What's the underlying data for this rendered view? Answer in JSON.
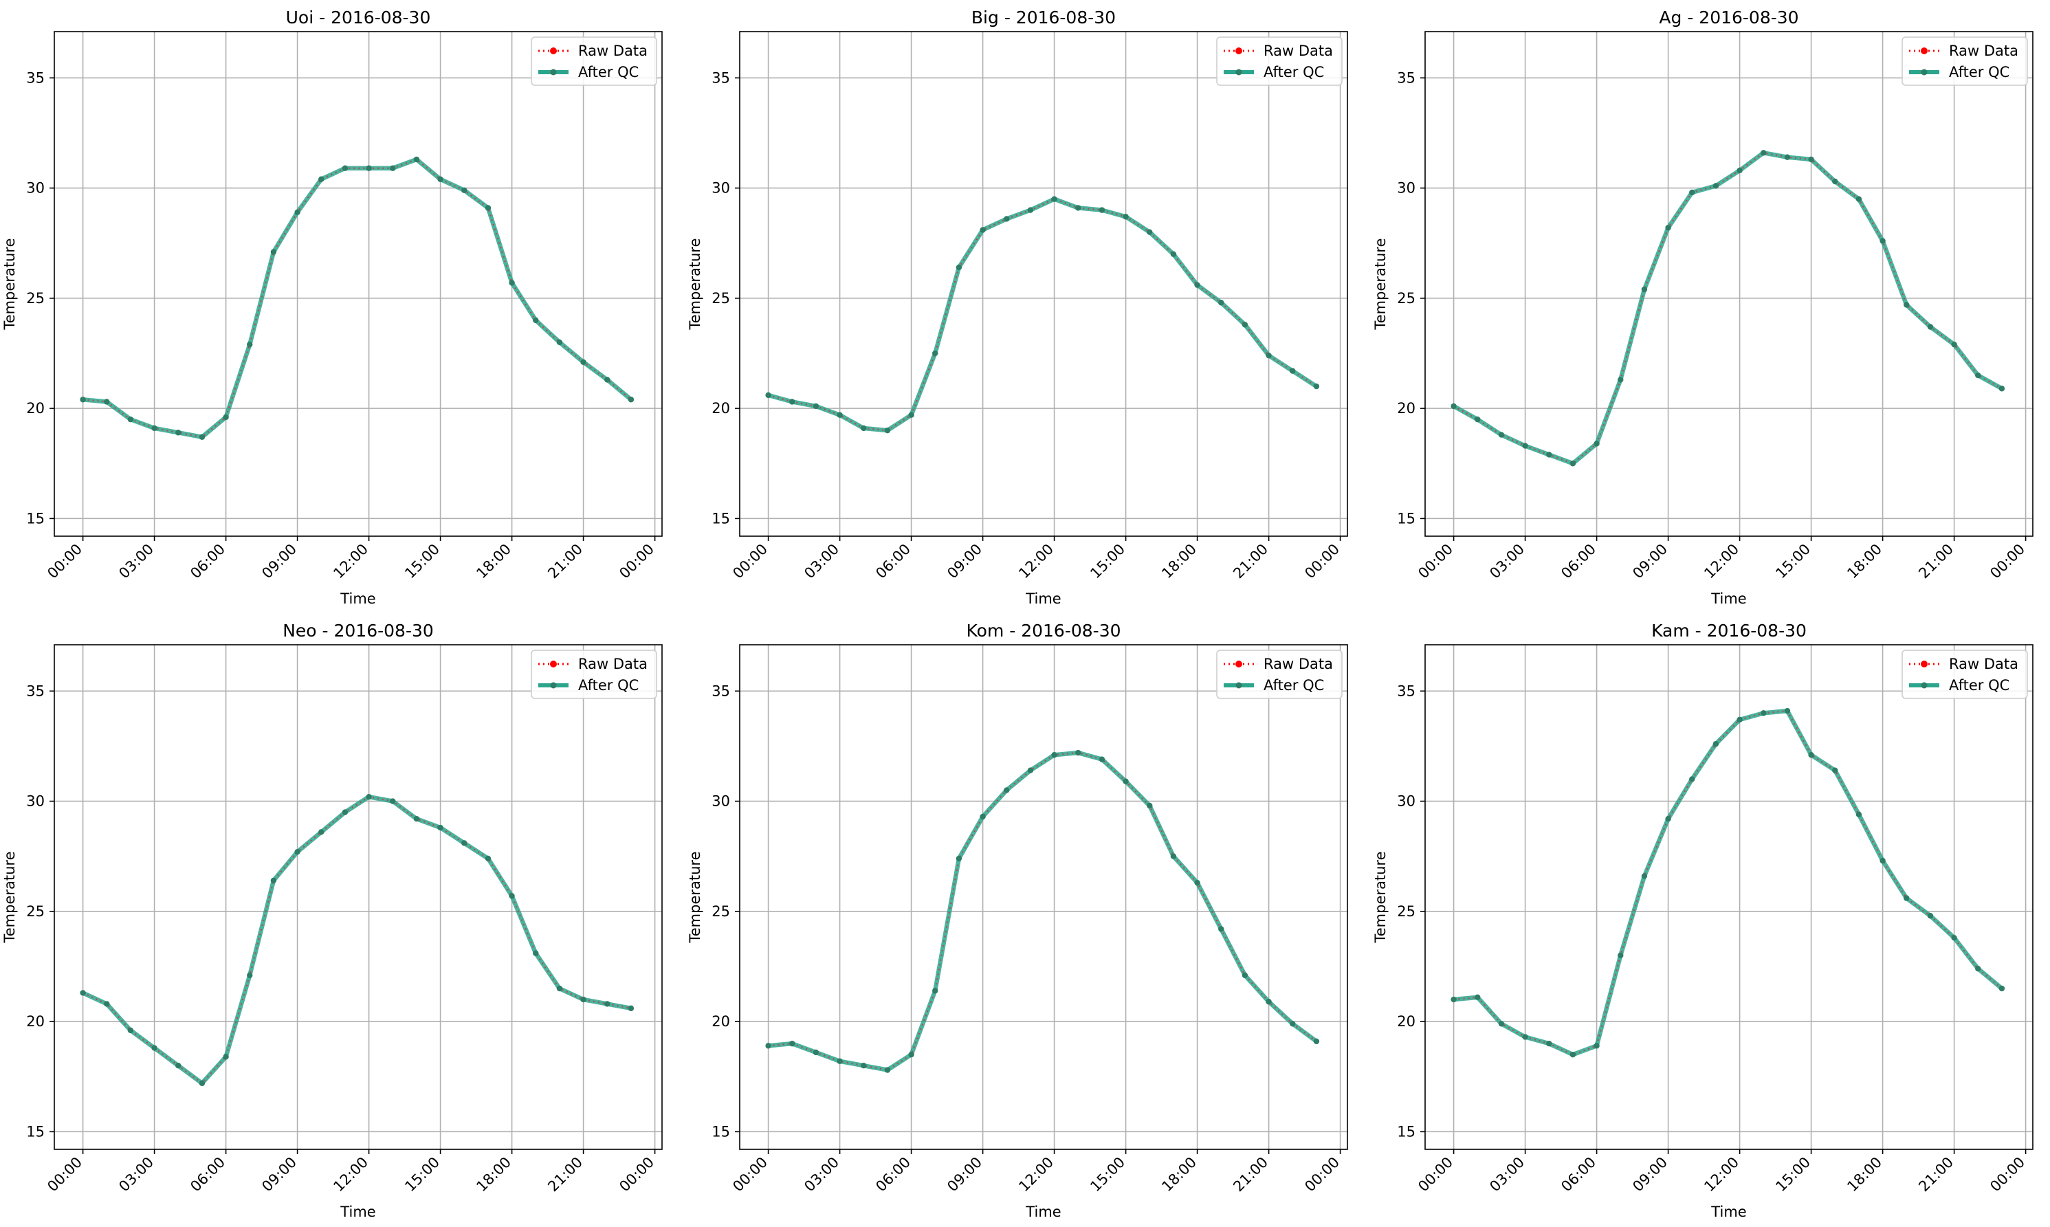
{
  "legend": {
    "raw_label": "Raw Data",
    "qc_label": "After QC"
  },
  "colors": {
    "raw": "#ff0000",
    "qc": "#2ca58d",
    "qc_marker": "#2e7d66",
    "grid": "#b0b0b0",
    "axis": "#000000"
  },
  "axes_common": {
    "xlabel": "Time",
    "ylabel": "Temperature",
    "x_tick_labels": [
      "00:00",
      "03:00",
      "06:00",
      "09:00",
      "12:00",
      "15:00",
      "18:00",
      "21:00",
      "00:00"
    ],
    "y_ticks": [
      15,
      20,
      25,
      30,
      35
    ],
    "ylim": [
      14.2,
      37.1
    ],
    "xlim_hours": [
      -1.2,
      24.3
    ],
    "grid": true,
    "legend_position": "top-right"
  },
  "chart_data": [
    {
      "type": "line",
      "title": "Uoi - 2016-08-30",
      "x": [
        0,
        1,
        2,
        3,
        4,
        5,
        6,
        7,
        8,
        9,
        10,
        11,
        12,
        13,
        14,
        15,
        16,
        17,
        18,
        19,
        20,
        21,
        22,
        23
      ],
      "series": [
        {
          "name": "Raw Data",
          "values": [
            20.4,
            20.3,
            19.5,
            19.1,
            18.9,
            18.7,
            19.6,
            22.9,
            27.1,
            28.9,
            30.4,
            30.9,
            30.9,
            30.9,
            31.3,
            30.4,
            29.9,
            29.1,
            25.7,
            24.0,
            23.0,
            22.1,
            21.3,
            20.4
          ]
        },
        {
          "name": "After QC",
          "values": [
            20.4,
            20.3,
            19.5,
            19.1,
            18.9,
            18.7,
            19.6,
            22.9,
            27.1,
            28.9,
            30.4,
            30.9,
            30.9,
            30.9,
            31.3,
            30.4,
            29.9,
            29.1,
            25.7,
            24.0,
            23.0,
            22.1,
            21.3,
            20.4
          ]
        }
      ]
    },
    {
      "type": "line",
      "title": "Big - 2016-08-30",
      "x": [
        0,
        1,
        2,
        3,
        4,
        5,
        6,
        7,
        8,
        9,
        10,
        11,
        12,
        13,
        14,
        15,
        16,
        17,
        18,
        19,
        20,
        21,
        22,
        23
      ],
      "series": [
        {
          "name": "Raw Data",
          "values": [
            20.6,
            20.3,
            20.1,
            19.7,
            19.1,
            19.0,
            19.7,
            22.5,
            26.4,
            28.1,
            28.6,
            29.0,
            29.5,
            29.1,
            29.0,
            28.7,
            28.0,
            27.0,
            25.6,
            24.8,
            23.8,
            22.4,
            21.7,
            21.0
          ]
        },
        {
          "name": "After QC",
          "values": [
            20.6,
            20.3,
            20.1,
            19.7,
            19.1,
            19.0,
            19.7,
            22.5,
            26.4,
            28.1,
            28.6,
            29.0,
            29.5,
            29.1,
            29.0,
            28.7,
            28.0,
            27.0,
            25.6,
            24.8,
            23.8,
            22.4,
            21.7,
            21.0
          ]
        }
      ]
    },
    {
      "type": "line",
      "title": "Ag - 2016-08-30",
      "x": [
        0,
        1,
        2,
        3,
        4,
        5,
        6,
        7,
        8,
        9,
        10,
        11,
        12,
        13,
        14,
        15,
        16,
        17,
        18,
        19,
        20,
        21,
        22,
        23
      ],
      "series": [
        {
          "name": "Raw Data",
          "values": [
            20.1,
            19.5,
            18.8,
            18.3,
            17.9,
            17.5,
            18.4,
            21.3,
            25.4,
            28.2,
            29.8,
            30.1,
            30.8,
            31.6,
            31.4,
            31.3,
            30.3,
            29.5,
            27.6,
            24.7,
            23.7,
            22.9,
            21.5,
            20.9
          ]
        },
        {
          "name": "After QC",
          "values": [
            20.1,
            19.5,
            18.8,
            18.3,
            17.9,
            17.5,
            18.4,
            21.3,
            25.4,
            28.2,
            29.8,
            30.1,
            30.8,
            31.6,
            31.4,
            31.3,
            30.3,
            29.5,
            27.6,
            24.7,
            23.7,
            22.9,
            21.5,
            20.9
          ]
        }
      ]
    },
    {
      "type": "line",
      "title": "Neo - 2016-08-30",
      "x": [
        0,
        1,
        2,
        3,
        4,
        5,
        6,
        7,
        8,
        9,
        10,
        11,
        12,
        13,
        14,
        15,
        16,
        17,
        18,
        19,
        20,
        21,
        22,
        23
      ],
      "series": [
        {
          "name": "Raw Data",
          "values": [
            21.3,
            20.8,
            19.6,
            18.8,
            18.0,
            17.2,
            18.4,
            22.1,
            26.4,
            27.7,
            28.6,
            29.5,
            30.2,
            30.0,
            29.2,
            28.8,
            28.1,
            27.4,
            25.7,
            23.1,
            21.5,
            21.0,
            20.8,
            20.6
          ]
        },
        {
          "name": "After QC",
          "values": [
            21.3,
            20.8,
            19.6,
            18.8,
            18.0,
            17.2,
            18.4,
            22.1,
            26.4,
            27.7,
            28.6,
            29.5,
            30.2,
            30.0,
            29.2,
            28.8,
            28.1,
            27.4,
            25.7,
            23.1,
            21.5,
            21.0,
            20.8,
            20.6
          ]
        }
      ]
    },
    {
      "type": "line",
      "title": "Kom - 2016-08-30",
      "x": [
        0,
        1,
        2,
        3,
        4,
        5,
        6,
        7,
        8,
        9,
        10,
        11,
        12,
        13,
        14,
        15,
        16,
        17,
        18,
        19,
        20,
        21,
        22,
        23
      ],
      "series": [
        {
          "name": "Raw Data",
          "values": [
            18.9,
            19.0,
            18.6,
            18.2,
            18.0,
            17.8,
            18.5,
            21.4,
            27.4,
            29.3,
            30.5,
            31.4,
            32.1,
            32.2,
            31.9,
            30.9,
            29.8,
            27.5,
            26.3,
            24.2,
            22.1,
            20.9,
            19.9,
            19.1
          ]
        },
        {
          "name": "After QC",
          "values": [
            18.9,
            19.0,
            18.6,
            18.2,
            18.0,
            17.8,
            18.5,
            21.4,
            27.4,
            29.3,
            30.5,
            31.4,
            32.1,
            32.2,
            31.9,
            30.9,
            29.8,
            27.5,
            26.3,
            24.2,
            22.1,
            20.9,
            19.9,
            19.1
          ]
        }
      ]
    },
    {
      "type": "line",
      "title": "Kam - 2016-08-30",
      "x": [
        0,
        1,
        2,
        3,
        4,
        5,
        6,
        7,
        8,
        9,
        10,
        11,
        12,
        13,
        14,
        15,
        16,
        17,
        18,
        19,
        20,
        21,
        22,
        23
      ],
      "series": [
        {
          "name": "Raw Data",
          "values": [
            21.0,
            21.1,
            19.9,
            19.3,
            19.0,
            18.5,
            18.9,
            23.0,
            26.6,
            29.2,
            31.0,
            32.6,
            33.7,
            34.0,
            34.1,
            32.1,
            31.4,
            29.4,
            27.3,
            25.6,
            24.8,
            23.8,
            22.4,
            21.5
          ]
        },
        {
          "name": "After QC",
          "values": [
            21.0,
            21.1,
            19.9,
            19.3,
            19.0,
            18.5,
            18.9,
            23.0,
            26.6,
            29.2,
            31.0,
            32.6,
            33.7,
            34.0,
            34.1,
            32.1,
            31.4,
            29.4,
            27.3,
            25.6,
            24.8,
            23.8,
            22.4,
            21.5
          ]
        }
      ]
    }
  ]
}
